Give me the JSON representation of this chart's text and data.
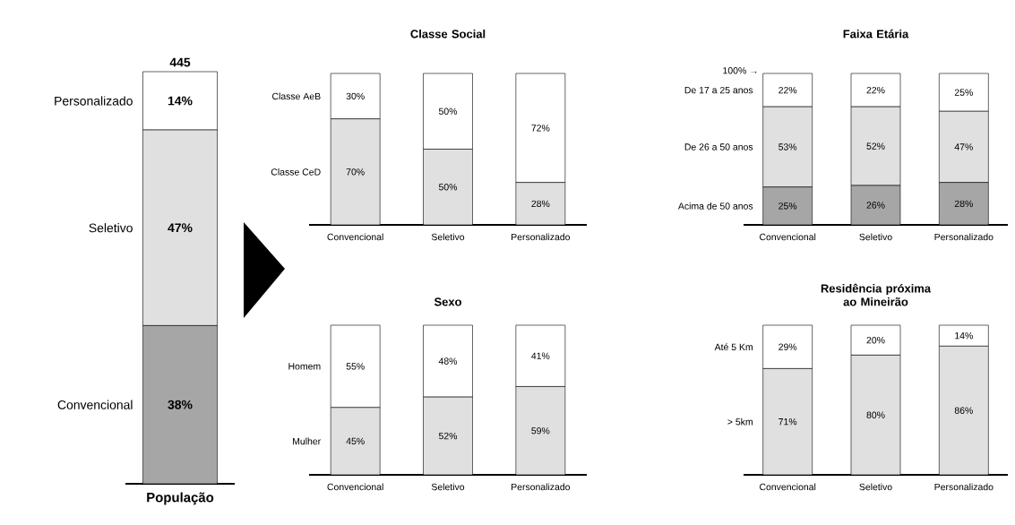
{
  "chart_data": [
    {
      "type": "bar",
      "stacked": true,
      "categories": [
        "População"
      ],
      "annotations": [
        {
          "text": "445",
          "x": "População",
          "y": 99
        }
      ],
      "series": [
        {
          "name": "Convencional",
          "color": "#a6a6a6",
          "values": [
            38
          ],
          "value_labels": [
            "38%"
          ]
        },
        {
          "name": "Seletivo",
          "color": "#e0e0e0",
          "values": [
            47
          ],
          "value_labels": [
            "47%"
          ]
        },
        {
          "name": "Personalizado",
          "color": "#ffffff",
          "values": [
            14
          ],
          "value_labels": [
            "14%"
          ]
        }
      ]
    },
    {
      "type": "bar",
      "stacked": true,
      "title": "Classe Social",
      "categories": [
        "Convencional",
        "Seletivo",
        "Personalizado"
      ],
      "series": [
        {
          "name": "Classe CeD",
          "color": "#e0e0e0",
          "values": [
            70,
            50,
            28
          ],
          "value_labels": [
            "70%",
            "50%",
            "28%"
          ]
        },
        {
          "name": "Classe AeB",
          "color": "#ffffff",
          "values": [
            30,
            50,
            72
          ],
          "value_labels": [
            "30%",
            "50%",
            "72%"
          ]
        }
      ]
    },
    {
      "type": "bar",
      "stacked": true,
      "title": "Faixa Etária",
      "annotations": [
        "100% →"
      ],
      "categories": [
        "Convencional",
        "Seletivo",
        "Personalizado"
      ],
      "series": [
        {
          "name": "Acima de 50 anos",
          "color": "#a6a6a6",
          "values": [
            25,
            26,
            28
          ],
          "value_labels": [
            "25%",
            "26%",
            "28%"
          ]
        },
        {
          "name": "De 26 a 50 anos",
          "color": "#e0e0e0",
          "values": [
            53,
            52,
            47
          ],
          "value_labels": [
            "53%",
            "52%",
            "47%"
          ]
        },
        {
          "name": "De 17 a 25 anos",
          "color": "#ffffff",
          "values": [
            22,
            22,
            25
          ],
          "value_labels": [
            "22%",
            "22%",
            "25%"
          ]
        }
      ]
    },
    {
      "type": "bar",
      "stacked": true,
      "title": "Sexo",
      "categories": [
        "Convencional",
        "Seletivo",
        "Personalizado"
      ],
      "series": [
        {
          "name": "Mulher",
          "color": "#e0e0e0",
          "values": [
            45,
            52,
            59
          ],
          "value_labels": [
            "45%",
            "52%",
            "59%"
          ]
        },
        {
          "name": "Homem",
          "color": "#ffffff",
          "values": [
            55,
            48,
            41
          ],
          "value_labels": [
            "55%",
            "48%",
            "41%"
          ]
        }
      ]
    },
    {
      "type": "bar",
      "stacked": true,
      "title": "Residência próxima ao Mineirão",
      "categories": [
        "Convencional",
        "Seletivo",
        "Personalizado"
      ],
      "series": [
        {
          "name": "> 5km",
          "color": "#e0e0e0",
          "values": [
            71,
            80,
            86
          ],
          "value_labels": [
            "71%",
            "80%",
            "86%"
          ]
        },
        {
          "name": "Até 5 Km",
          "color": "#ffffff",
          "values": [
            29,
            20,
            14
          ],
          "value_labels": [
            "29%",
            "20%",
            "14%"
          ]
        }
      ]
    }
  ]
}
